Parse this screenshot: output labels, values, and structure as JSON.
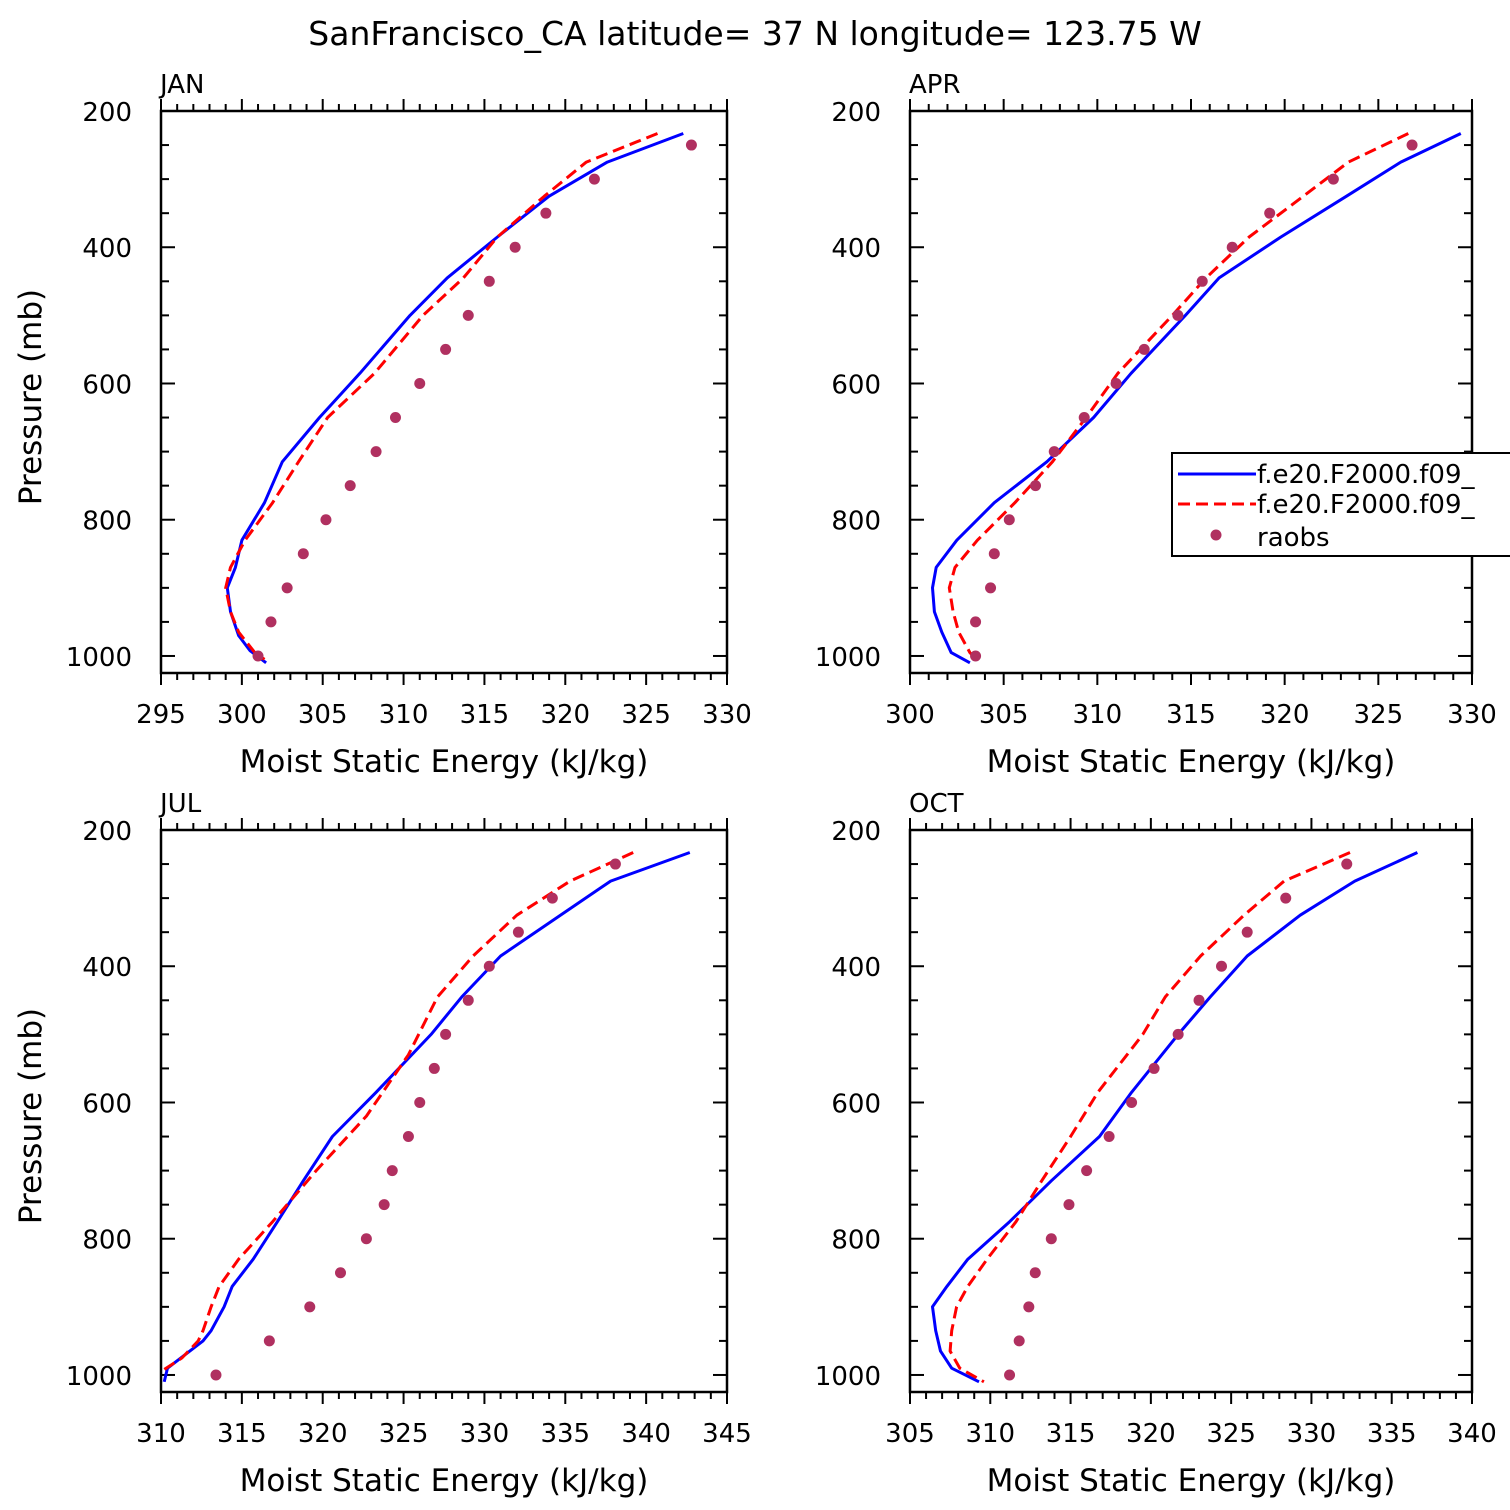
{
  "figure": {
    "title": "SanFrancisco_CA  latitude= 37 N longitude= 123.75 W"
  },
  "legend": {
    "entries": [
      {
        "label": "f.e20.F2000.f09_",
        "style": "solid",
        "color": "#0000ff"
      },
      {
        "label": "f.e20.F2000.f09_",
        "style": "dashed",
        "color": "#ff0000"
      },
      {
        "label": "raobs",
        "style": "dot",
        "color": "#b03060"
      }
    ]
  },
  "colors": {
    "model_solid": "#0000ff",
    "model_dashed": "#ff0000",
    "raobs": "#b03060"
  },
  "chart_data": [
    {
      "type": "line",
      "panel": "JAN",
      "xlabel": "Moist Static Energy (kJ/kg)",
      "ylabel": "Pressure (mb)",
      "xlim": [
        295,
        330
      ],
      "ylim": [
        1025,
        200
      ],
      "xticks": [
        295,
        300,
        305,
        310,
        315,
        320,
        325,
        330
      ],
      "yticks": [
        200,
        400,
        600,
        800,
        1000
      ],
      "series": [
        {
          "style": "solid",
          "points": [
            [
              327.3,
              233
            ],
            [
              322.6,
              275
            ],
            [
              319.0,
              325
            ],
            [
              315.8,
              385
            ],
            [
              312.7,
              445
            ],
            [
              310.4,
              500
            ],
            [
              307.3,
              585
            ],
            [
              304.8,
              650
            ],
            [
              302.5,
              715
            ],
            [
              301.4,
              775
            ],
            [
              300.0,
              830
            ],
            [
              299.6,
              870
            ],
            [
              299.1,
              900
            ],
            [
              299.3,
              935
            ],
            [
              299.8,
              970
            ],
            [
              300.5,
              992
            ],
            [
              301.5,
              1010
            ]
          ]
        },
        {
          "style": "dashed",
          "points": [
            [
              325.7,
              233
            ],
            [
              321.3,
              275
            ],
            [
              318.7,
              325
            ],
            [
              315.8,
              385
            ],
            [
              313.7,
              445
            ],
            [
              311.2,
              500
            ],
            [
              308.2,
              585
            ],
            [
              305.3,
              650
            ],
            [
              303.5,
              715
            ],
            [
              301.9,
              775
            ],
            [
              300.2,
              830
            ],
            [
              299.3,
              870
            ],
            [
              299.0,
              900
            ],
            [
              299.3,
              935
            ],
            [
              299.8,
              965
            ],
            [
              300.8,
              995
            ],
            [
              301.4,
              1005
            ]
          ]
        },
        {
          "style": "dot",
          "points": [
            [
              327.8,
              250
            ],
            [
              321.8,
              300
            ],
            [
              318.8,
              350
            ],
            [
              316.9,
              400
            ],
            [
              315.3,
              450
            ],
            [
              314.0,
              500
            ],
            [
              312.6,
              550
            ],
            [
              311.0,
              600
            ],
            [
              309.5,
              650
            ],
            [
              308.3,
              700
            ],
            [
              306.7,
              750
            ],
            [
              305.2,
              800
            ],
            [
              303.8,
              850
            ],
            [
              302.8,
              900
            ],
            [
              301.8,
              950
            ],
            [
              301.0,
              1000
            ]
          ]
        }
      ]
    },
    {
      "type": "line",
      "panel": "APR",
      "xlabel": "Moist Static Energy (kJ/kg)",
      "ylabel": "",
      "xlim": [
        300,
        330
      ],
      "ylim": [
        1025,
        200
      ],
      "xticks": [
        300,
        305,
        310,
        315,
        320,
        325,
        330
      ],
      "yticks": [
        200,
        400,
        600,
        800,
        1000
      ],
      "series": [
        {
          "style": "solid",
          "points": [
            [
              329.4,
              233
            ],
            [
              326.2,
              275
            ],
            [
              323.3,
              325
            ],
            [
              319.8,
              385
            ],
            [
              316.5,
              445
            ],
            [
              314.7,
              500
            ],
            [
              311.8,
              585
            ],
            [
              309.8,
              650
            ],
            [
              307.3,
              715
            ],
            [
              304.5,
              775
            ],
            [
              302.5,
              830
            ],
            [
              301.4,
              870
            ],
            [
              301.2,
              900
            ],
            [
              301.3,
              935
            ],
            [
              301.7,
              965
            ],
            [
              302.2,
              995
            ],
            [
              303.2,
              1010
            ]
          ]
        },
        {
          "style": "dashed",
          "points": [
            [
              326.6,
              233
            ],
            [
              323.4,
              275
            ],
            [
              321.0,
              325
            ],
            [
              318.1,
              385
            ],
            [
              315.8,
              445
            ],
            [
              314.0,
              500
            ],
            [
              311.1,
              585
            ],
            [
              309.4,
              650
            ],
            [
              307.6,
              715
            ],
            [
              305.6,
              775
            ],
            [
              303.6,
              830
            ],
            [
              302.4,
              870
            ],
            [
              302.1,
              900
            ],
            [
              302.3,
              935
            ],
            [
              302.6,
              965
            ],
            [
              303.2,
              995
            ],
            [
              303.7,
              1010
            ]
          ]
        },
        {
          "style": "dot",
          "points": [
            [
              326.8,
              250
            ],
            [
              322.6,
              300
            ],
            [
              319.2,
              350
            ],
            [
              317.2,
              400
            ],
            [
              315.6,
              450
            ],
            [
              314.3,
              500
            ],
            [
              312.5,
              550
            ],
            [
              311.0,
              600
            ],
            [
              309.3,
              650
            ],
            [
              307.7,
              700
            ],
            [
              306.7,
              750
            ],
            [
              305.3,
              800
            ],
            [
              304.5,
              850
            ],
            [
              304.3,
              900
            ],
            [
              303.5,
              950
            ],
            [
              303.5,
              1000
            ]
          ]
        }
      ]
    },
    {
      "type": "line",
      "panel": "JUL",
      "xlabel": "Moist Static Energy (kJ/kg)",
      "ylabel": "Pressure (mb)",
      "xlim": [
        310,
        345
      ],
      "ylim": [
        1025,
        200
      ],
      "xticks": [
        310,
        315,
        320,
        325,
        330,
        335,
        340,
        345
      ],
      "yticks": [
        200,
        400,
        600,
        800,
        1000
      ],
      "series": [
        {
          "style": "solid",
          "points": [
            [
              342.7,
              233
            ],
            [
              337.8,
              275
            ],
            [
              334.7,
              325
            ],
            [
              331.0,
              385
            ],
            [
              328.6,
              445
            ],
            [
              326.7,
              500
            ],
            [
              323.3,
              585
            ],
            [
              320.6,
              650
            ],
            [
              318.8,
              715
            ],
            [
              317.2,
              775
            ],
            [
              315.7,
              830
            ],
            [
              314.4,
              870
            ],
            [
              313.9,
              900
            ],
            [
              313.1,
              935
            ],
            [
              312.6,
              950
            ],
            [
              310.4,
              990
            ],
            [
              310.2,
              1010
            ]
          ]
        },
        {
          "style": "dashed",
          "points": [
            [
              339.2,
              233
            ],
            [
              335.3,
              275
            ],
            [
              332.0,
              325
            ],
            [
              329.3,
              385
            ],
            [
              327.1,
              445
            ],
            [
              325.3,
              530
            ],
            [
              322.7,
              620
            ],
            [
              319.6,
              700
            ],
            [
              316.9,
              775
            ],
            [
              314.8,
              830
            ],
            [
              313.6,
              870
            ],
            [
              313.1,
              900
            ],
            [
              312.6,
              935
            ],
            [
              312.3,
              950
            ],
            [
              311.3,
              975
            ],
            [
              310.0,
              995
            ]
          ]
        },
        {
          "style": "dot",
          "points": [
            [
              338.1,
              250
            ],
            [
              334.2,
              300
            ],
            [
              332.1,
              350
            ],
            [
              330.3,
              400
            ],
            [
              329.0,
              450
            ],
            [
              327.6,
              500
            ],
            [
              326.9,
              550
            ],
            [
              326.0,
              600
            ],
            [
              325.3,
              650
            ],
            [
              324.3,
              700
            ],
            [
              323.8,
              750
            ],
            [
              322.7,
              800
            ],
            [
              321.1,
              850
            ],
            [
              319.2,
              900
            ],
            [
              316.7,
              950
            ],
            [
              313.4,
              1000
            ]
          ]
        }
      ]
    },
    {
      "type": "line",
      "panel": "OCT",
      "xlabel": "Moist Static Energy (kJ/kg)",
      "ylabel": "",
      "xlim": [
        305,
        340
      ],
      "ylim": [
        1025,
        200
      ],
      "xticks": [
        305,
        310,
        315,
        320,
        325,
        330,
        335,
        340
      ],
      "yticks": [
        200,
        400,
        600,
        800,
        1000
      ],
      "series": [
        {
          "style": "solid",
          "points": [
            [
              336.6,
              233
            ],
            [
              332.7,
              275
            ],
            [
              329.3,
              325
            ],
            [
              326.0,
              385
            ],
            [
              323.7,
              445
            ],
            [
              321.7,
              500
            ],
            [
              318.8,
              585
            ],
            [
              316.8,
              650
            ],
            [
              313.8,
              715
            ],
            [
              311.2,
              775
            ],
            [
              308.6,
              830
            ],
            [
              307.3,
              870
            ],
            [
              306.4,
              900
            ],
            [
              306.6,
              935
            ],
            [
              306.9,
              965
            ],
            [
              307.6,
              990
            ],
            [
              309.3,
              1010
            ]
          ]
        },
        {
          "style": "dashed",
          "points": [
            [
              332.4,
              233
            ],
            [
              328.3,
              275
            ],
            [
              325.8,
              325
            ],
            [
              323.1,
              385
            ],
            [
              320.9,
              445
            ],
            [
              319.5,
              500
            ],
            [
              316.7,
              585
            ],
            [
              315.0,
              650
            ],
            [
              313.2,
              715
            ],
            [
              311.6,
              775
            ],
            [
              309.8,
              830
            ],
            [
              308.6,
              870
            ],
            [
              307.9,
              900
            ],
            [
              307.6,
              935
            ],
            [
              307.5,
              965
            ],
            [
              308.1,
              990
            ],
            [
              309.6,
              1010
            ]
          ]
        },
        {
          "style": "dot",
          "points": [
            [
              332.2,
              250
            ],
            [
              328.4,
              300
            ],
            [
              326.0,
              350
            ],
            [
              324.4,
              400
            ],
            [
              323.0,
              450
            ],
            [
              321.7,
              500
            ],
            [
              320.2,
              550
            ],
            [
              318.8,
              600
            ],
            [
              317.4,
              650
            ],
            [
              316.0,
              700
            ],
            [
              314.9,
              750
            ],
            [
              313.8,
              800
            ],
            [
              312.8,
              850
            ],
            [
              312.4,
              900
            ],
            [
              311.8,
              950
            ],
            [
              311.2,
              1000
            ]
          ]
        }
      ]
    }
  ]
}
